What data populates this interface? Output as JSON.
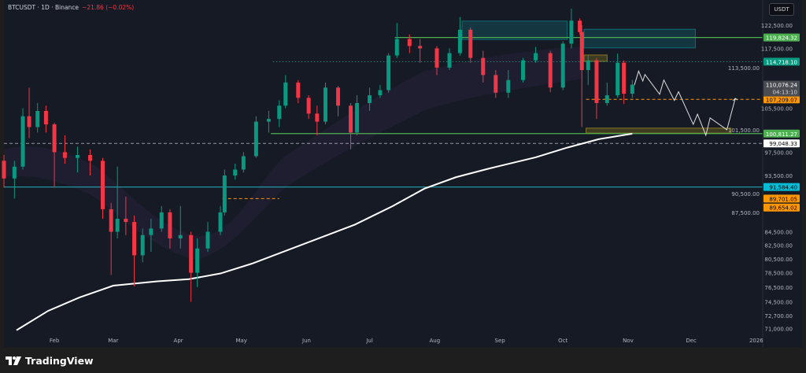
{
  "header": {
    "symbol_line": "BTCUSDT · 1D · Binance",
    "change": "−21.86 (−0.02%)"
  },
  "currency_button": "USDT",
  "brand": "TradingView",
  "colors": {
    "up": "#089981",
    "down": "#f23645",
    "background": "#161a25",
    "accent_green": "#4caf50",
    "accent_teal": "#089981",
    "accent_orange": "#ff9800",
    "accent_cyan": "#00bcd4"
  },
  "chart_data": {
    "type": "candlestick",
    "symbol": "BTCUSDT",
    "interval": "1D",
    "exchange": "Binance",
    "y_scale": "log",
    "ylim": [
      70000,
      128000
    ],
    "x_range": [
      "2025-01-08",
      "2026-01-10"
    ],
    "grid": false,
    "price_ticks": [
      "122,500.00",
      "117,500.00",
      "113,500.00",
      "105,500.00",
      "101,500.00",
      "97,500.00",
      "93,500.00",
      "90,500.00",
      "87,500.00",
      "84,500.00",
      "82,500.00",
      "80,500.00",
      "78,500.00",
      "76,500.00",
      "74,500.00",
      "72,700.00",
      "71,000.00"
    ],
    "price_tick_values": [
      122500,
      117500,
      113500,
      105500,
      101500,
      97500,
      93500,
      90500,
      87500,
      84500,
      82500,
      80500,
      78500,
      76500,
      74500,
      72700,
      71000
    ],
    "time_ticks": [
      {
        "label": "Feb",
        "date": "2025-02-01"
      },
      {
        "label": "Mar",
        "date": "2025-03-01"
      },
      {
        "label": "Apr",
        "date": "2025-04-01"
      },
      {
        "label": "May",
        "date": "2025-05-01"
      },
      {
        "label": "Jun",
        "date": "2025-06-01"
      },
      {
        "label": "Jul",
        "date": "2025-07-01"
      },
      {
        "label": "Aug",
        "date": "2025-08-01"
      },
      {
        "label": "Sep",
        "date": "2025-09-01"
      },
      {
        "label": "Oct",
        "date": "2025-10-01"
      },
      {
        "label": "Nov",
        "date": "2025-11-01"
      },
      {
        "label": "Dec",
        "date": "2025-12-01"
      },
      {
        "label": "2026",
        "date": "2026-01-01"
      }
    ],
    "candles": [
      [
        "2025-01-08",
        96000,
        97000,
        91500,
        93000
      ],
      [
        "2025-01-13",
        93000,
        96000,
        89700,
        95000
      ],
      [
        "2025-01-17",
        95000,
        105500,
        94500,
        104000
      ],
      [
        "2025-01-20",
        104000,
        109500,
        100000,
        102000
      ],
      [
        "2025-01-24",
        102000,
        106500,
        101000,
        105000
      ],
      [
        "2025-01-28",
        105000,
        106000,
        101000,
        102500
      ],
      [
        "2025-02-01",
        102500,
        102800,
        91500,
        97500
      ],
      [
        "2025-02-06",
        97500,
        100500,
        95500,
        96500
      ],
      [
        "2025-02-12",
        96500,
        98500,
        94000,
        97000
      ],
      [
        "2025-02-18",
        97000,
        98000,
        93500,
        96000
      ],
      [
        "2025-02-24",
        96000,
        96500,
        86500,
        88000
      ],
      [
        "2025-02-28",
        88000,
        89000,
        78200,
        84500
      ],
      [
        "2025-03-03",
        84500,
        95000,
        83500,
        86500
      ],
      [
        "2025-03-07",
        86500,
        90000,
        84000,
        86000
      ],
      [
        "2025-03-11",
        86000,
        87000,
        76600,
        81000
      ],
      [
        "2025-03-15",
        81000,
        85000,
        80000,
        84000
      ],
      [
        "2025-03-19",
        84000,
        86500,
        81500,
        85000
      ],
      [
        "2025-03-24",
        85000,
        88500,
        84500,
        87500
      ],
      [
        "2025-03-28",
        87500,
        88000,
        82000,
        83500
      ],
      [
        "2025-04-02",
        83500,
        88500,
        82000,
        84000
      ],
      [
        "2025-04-07",
        84000,
        84500,
        74500,
        78500
      ],
      [
        "2025-04-10",
        78500,
        83500,
        76500,
        82000
      ],
      [
        "2025-04-15",
        82000,
        86000,
        81500,
        84500
      ],
      [
        "2025-04-21",
        84500,
        88500,
        84000,
        87500
      ],
      [
        "2025-04-23",
        87500,
        94500,
        87000,
        93500
      ],
      [
        "2025-04-28",
        93500,
        95500,
        92800,
        94500
      ],
      [
        "2025-05-02",
        94500,
        97500,
        94000,
        96800
      ],
      [
        "2025-05-08",
        96800,
        104000,
        96500,
        103000
      ],
      [
        "2025-05-14",
        103000,
        105000,
        101000,
        103500
      ],
      [
        "2025-05-19",
        103500,
        107000,
        102000,
        106000
      ],
      [
        "2025-05-22",
        106000,
        112000,
        105500,
        110500
      ],
      [
        "2025-05-28",
        110500,
        111000,
        106500,
        107500
      ],
      [
        "2025-06-02",
        107500,
        108000,
        103500,
        104500
      ],
      [
        "2025-06-06",
        104500,
        106000,
        100500,
        103000
      ],
      [
        "2025-06-10",
        103000,
        110500,
        102500,
        109500
      ],
      [
        "2025-06-16",
        109500,
        109800,
        104000,
        106000
      ],
      [
        "2025-06-22",
        106000,
        106500,
        98000,
        101000
      ],
      [
        "2025-06-25",
        101000,
        108000,
        100500,
        106500
      ],
      [
        "2025-07-01",
        106500,
        109500,
        105000,
        108000
      ],
      [
        "2025-07-06",
        108000,
        110000,
        107500,
        109000
      ],
      [
        "2025-07-10",
        109000,
        116500,
        108500,
        116000
      ],
      [
        "2025-07-14",
        116000,
        123000,
        115500,
        119500
      ],
      [
        "2025-07-20",
        119500,
        120500,
        116500,
        118000
      ],
      [
        "2025-07-25",
        118000,
        119500,
        114500,
        117500
      ],
      [
        "2025-08-02",
        117500,
        118000,
        112000,
        113500
      ],
      [
        "2025-08-08",
        113500,
        117500,
        113000,
        116500
      ],
      [
        "2025-08-13",
        116500,
        124300,
        116000,
        121500
      ],
      [
        "2025-08-18",
        121500,
        122000,
        114500,
        115500
      ],
      [
        "2025-08-24",
        115500,
        117000,
        110500,
        112000
      ],
      [
        "2025-08-30",
        112000,
        113000,
        107500,
        108500
      ],
      [
        "2025-09-05",
        108500,
        113000,
        107500,
        111000
      ],
      [
        "2025-09-12",
        111000,
        115500,
        110500,
        115000
      ],
      [
        "2025-09-18",
        115000,
        117800,
        114500,
        116500
      ],
      [
        "2025-09-25",
        116500,
        117000,
        108600,
        109500
      ],
      [
        "2025-10-01",
        109500,
        119000,
        109000,
        118500
      ],
      [
        "2025-10-05",
        118500,
        126200,
        117500,
        123500
      ],
      [
        "2025-10-09",
        123500,
        124000,
        120500,
        121000
      ],
      [
        "2025-10-10",
        121000,
        122500,
        102000,
        113000
      ],
      [
        "2025-10-13",
        113000,
        116000,
        110000,
        115000
      ],
      [
        "2025-10-17",
        115000,
        115500,
        103500,
        106500
      ],
      [
        "2025-10-22",
        106500,
        110500,
        106000,
        108000
      ],
      [
        "2025-10-27",
        108000,
        116400,
        107500,
        114500
      ],
      [
        "2025-10-30",
        114500,
        115000,
        106300,
        108300
      ],
      [
        "2025-11-03",
        108300,
        111000,
        107500,
        110076.24
      ]
    ],
    "moving_average": [
      [
        "2025-01-14",
        70800
      ],
      [
        "2025-01-29",
        73300
      ],
      [
        "2025-02-13",
        75100
      ],
      [
        "2025-03-01",
        76700
      ],
      [
        "2025-03-22",
        77300
      ],
      [
        "2025-04-06",
        77600
      ],
      [
        "2025-04-21",
        78400
      ],
      [
        "2025-05-06",
        79800
      ],
      [
        "2025-06-05",
        83300
      ],
      [
        "2025-06-24",
        85600
      ],
      [
        "2025-07-12",
        88500
      ],
      [
        "2025-07-27",
        91300
      ],
      [
        "2025-08-11",
        93200
      ],
      [
        "2025-08-26",
        94600
      ],
      [
        "2025-09-18",
        96600
      ],
      [
        "2025-10-03",
        98300
      ],
      [
        "2025-10-18",
        99800
      ],
      [
        "2025-11-03",
        100800
      ]
    ],
    "forecast_path": [
      [
        "2025-11-04",
        110000
      ],
      [
        "2025-11-06",
        112800
      ],
      [
        "2025-11-08",
        110800
      ],
      [
        "2025-11-09",
        112100
      ],
      [
        "2025-11-16",
        108200
      ],
      [
        "2025-11-18",
        111000
      ],
      [
        "2025-11-23",
        107000
      ],
      [
        "2025-11-25",
        108700
      ],
      [
        "2025-12-02",
        102500
      ],
      [
        "2025-12-04",
        104400
      ],
      [
        "2025-12-08",
        100500
      ],
      [
        "2025-12-10",
        103700
      ],
      [
        "2025-12-18",
        101500
      ],
      [
        "2025-12-22",
        107400
      ]
    ],
    "zones": [
      {
        "name": "teal-zone-1",
        "from": "2025-08-14",
        "to": "2025-10-03",
        "top": 123400,
        "bottom": 119400,
        "color": "#0e6e73"
      },
      {
        "name": "teal-zone-2",
        "from": "2025-10-11",
        "to": "2025-12-03",
        "top": 121600,
        "bottom": 117600,
        "color": "#0e6e73"
      },
      {
        "name": "yellow-zone-1",
        "from": "2025-10-11",
        "to": "2025-10-22",
        "top": 116100,
        "bottom": 114800,
        "color": "#8a7a20"
      },
      {
        "name": "yellow-zone-2",
        "from": "2025-10-12",
        "to": "2025-12-20",
        "top": 101800,
        "bottom": 100900,
        "color": "#8a7a20"
      }
    ],
    "levels": [
      {
        "name": "level-119824",
        "value": 119824.32,
        "label": "119,824.32",
        "from": "2025-07-13",
        "style": "solid",
        "color": "#4caf50",
        "label_bg": "#4caf50",
        "label_fg": "#ffffff"
      },
      {
        "name": "level-114718",
        "value": 114718.1,
        "label": "114,718.10",
        "from": "2025-05-16",
        "style": "dotted",
        "color": "#089981",
        "label_bg": "#089981",
        "label_fg": "#ffffff"
      },
      {
        "name": "level-107209",
        "value": 107209.07,
        "label": "107,209.07",
        "from": "2025-10-12",
        "style": "dashed",
        "color": "#ff9800",
        "label_bg": "#ff9800",
        "label_fg": "#000000"
      },
      {
        "name": "level-100811",
        "value": 100811.27,
        "label": "100,811.27",
        "from": "2025-05-15",
        "style": "solid",
        "color": "#4caf50",
        "label_bg": "#4caf50",
        "label_fg": "#ffffff"
      },
      {
        "name": "level-99048",
        "value": 99048.33,
        "label": "99,048.33",
        "from": "2025-01-08",
        "style": "dashed",
        "color": "#9598a1",
        "label_bg": "#ffffff",
        "label_fg": "#000000"
      },
      {
        "name": "level-91584",
        "value": 91584.4,
        "label": "91,584.40",
        "from": "2025-01-08",
        "style": "solid",
        "color": "#2196a3",
        "label_bg": "#00bcd4",
        "label_fg": "#000000"
      },
      {
        "name": "level-89701",
        "value": 89701.05,
        "label": "89,701.05",
        "from": "2025-04-22",
        "to": "2025-05-19",
        "style": "dashed",
        "color": "#ff9800",
        "label_bg": "#ff9800",
        "label_fg": "#000000"
      },
      {
        "name": "level-89654",
        "value": 89654.02,
        "label": "89,654.02",
        "from": "2025-04-22",
        "to": "2025-05-19",
        "style": "none",
        "color": "#ff9800",
        "label_bg": "#ff9800",
        "label_fg": "#000000",
        "label_offset": 1
      }
    ],
    "last_price": {
      "value": 110076.24,
      "label": "110,076.24",
      "countdown": "04:13:10"
    }
  }
}
